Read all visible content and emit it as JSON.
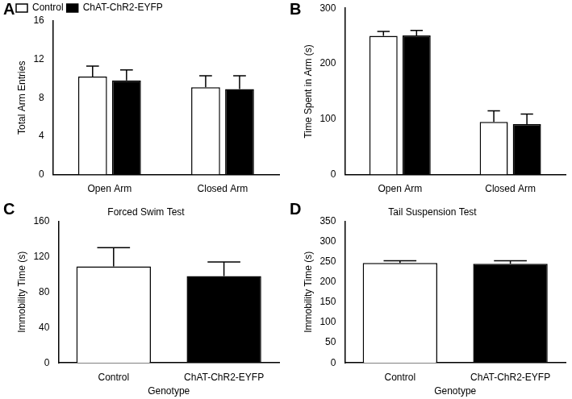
{
  "chart_data": [
    {
      "panel": "A",
      "type": "bar",
      "y_label": "Total Arm Entries",
      "categories": [
        "Open Arm",
        "Closed Arm"
      ],
      "series": [
        {
          "name": "Control",
          "color": "#ffffff",
          "values": [
            10.2,
            9.1
          ],
          "errors": [
            1.1,
            1.2
          ]
        },
        {
          "name": "ChAT-ChR2-EYFP",
          "color": "#000000",
          "values": [
            9.8,
            8.9
          ],
          "errors": [
            1.1,
            1.4
          ]
        }
      ],
      "ylim": [
        0,
        16
      ],
      "yticks": [
        0,
        4,
        8,
        12,
        16
      ],
      "grid": false,
      "legend": "upper left"
    },
    {
      "panel": "B",
      "type": "bar",
      "y_label": "Time Spent in Arm (s)",
      "categories": [
        "Open Arm",
        "Closed Arm"
      ],
      "series": [
        {
          "name": "Control",
          "color": "#ffffff",
          "values": [
            250,
            95
          ],
          "errors": [
            8,
            20
          ]
        },
        {
          "name": "ChAT-ChR2-EYFP",
          "color": "#000000",
          "values": [
            251,
            91
          ],
          "errors": [
            9,
            18
          ]
        }
      ],
      "ylim": [
        0,
        300
      ],
      "yticks": [
        0,
        100,
        200,
        300
      ],
      "grid": false
    },
    {
      "panel": "C",
      "type": "bar",
      "title": "Forced Swim Test",
      "x_label": "Genotype",
      "y_label": "Immobility Time (s)",
      "categories": [
        "Control",
        "ChAT-ChR2-EYFP"
      ],
      "values": [
        109,
        98
      ],
      "errors": [
        21,
        16
      ],
      "colors": [
        "#ffffff",
        "#000000"
      ],
      "ylim": [
        0,
        160
      ],
      "yticks": [
        0,
        40,
        80,
        120,
        160
      ],
      "grid": false
    },
    {
      "panel": "D",
      "type": "bar",
      "title": "Tail Suspension Test",
      "x_label": "Genotype",
      "y_label": "Immobility Time (s)",
      "categories": [
        "Control",
        "ChAT-ChR2-EYFP"
      ],
      "values": [
        247,
        245
      ],
      "errors": [
        5,
        7
      ],
      "colors": [
        "#ffffff",
        "#000000"
      ],
      "ylim": [
        0,
        350
      ],
      "yticks": [
        0,
        50,
        100,
        150,
        200,
        250,
        300,
        350
      ],
      "grid": false
    }
  ]
}
